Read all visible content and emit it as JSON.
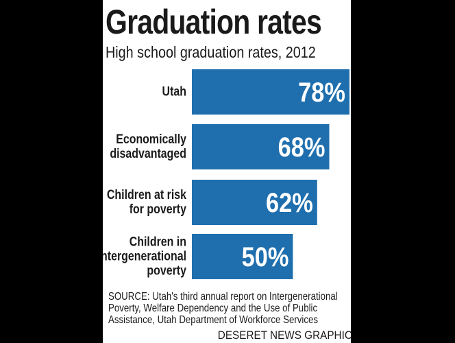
{
  "chart_data": {
    "type": "bar",
    "orientation": "horizontal",
    "title": "Graduation rates",
    "subtitle": "High school graduation rates, 2012",
    "categories": [
      [
        "Utah"
      ],
      [
        "Economically",
        "disadvantaged"
      ],
      [
        "Children at risk",
        "for poverty"
      ],
      [
        "Children in",
        "intergenerational",
        "poverty"
      ]
    ],
    "values": [
      78,
      68,
      62,
      50
    ],
    "value_labels": [
      "78%",
      "68%",
      "62%",
      "50%"
    ],
    "xlim": [
      0,
      100
    ],
    "grid": false,
    "legend": "none",
    "bar_color": "#1f6fae"
  },
  "source": "SOURCE: Utah's third annual report on Intergenerational Poverty, Welfare Dependency and the Use of Public Assistance, Utah Department of Workforce Services",
  "credit": "DESERET NEWS GRAPHIC"
}
